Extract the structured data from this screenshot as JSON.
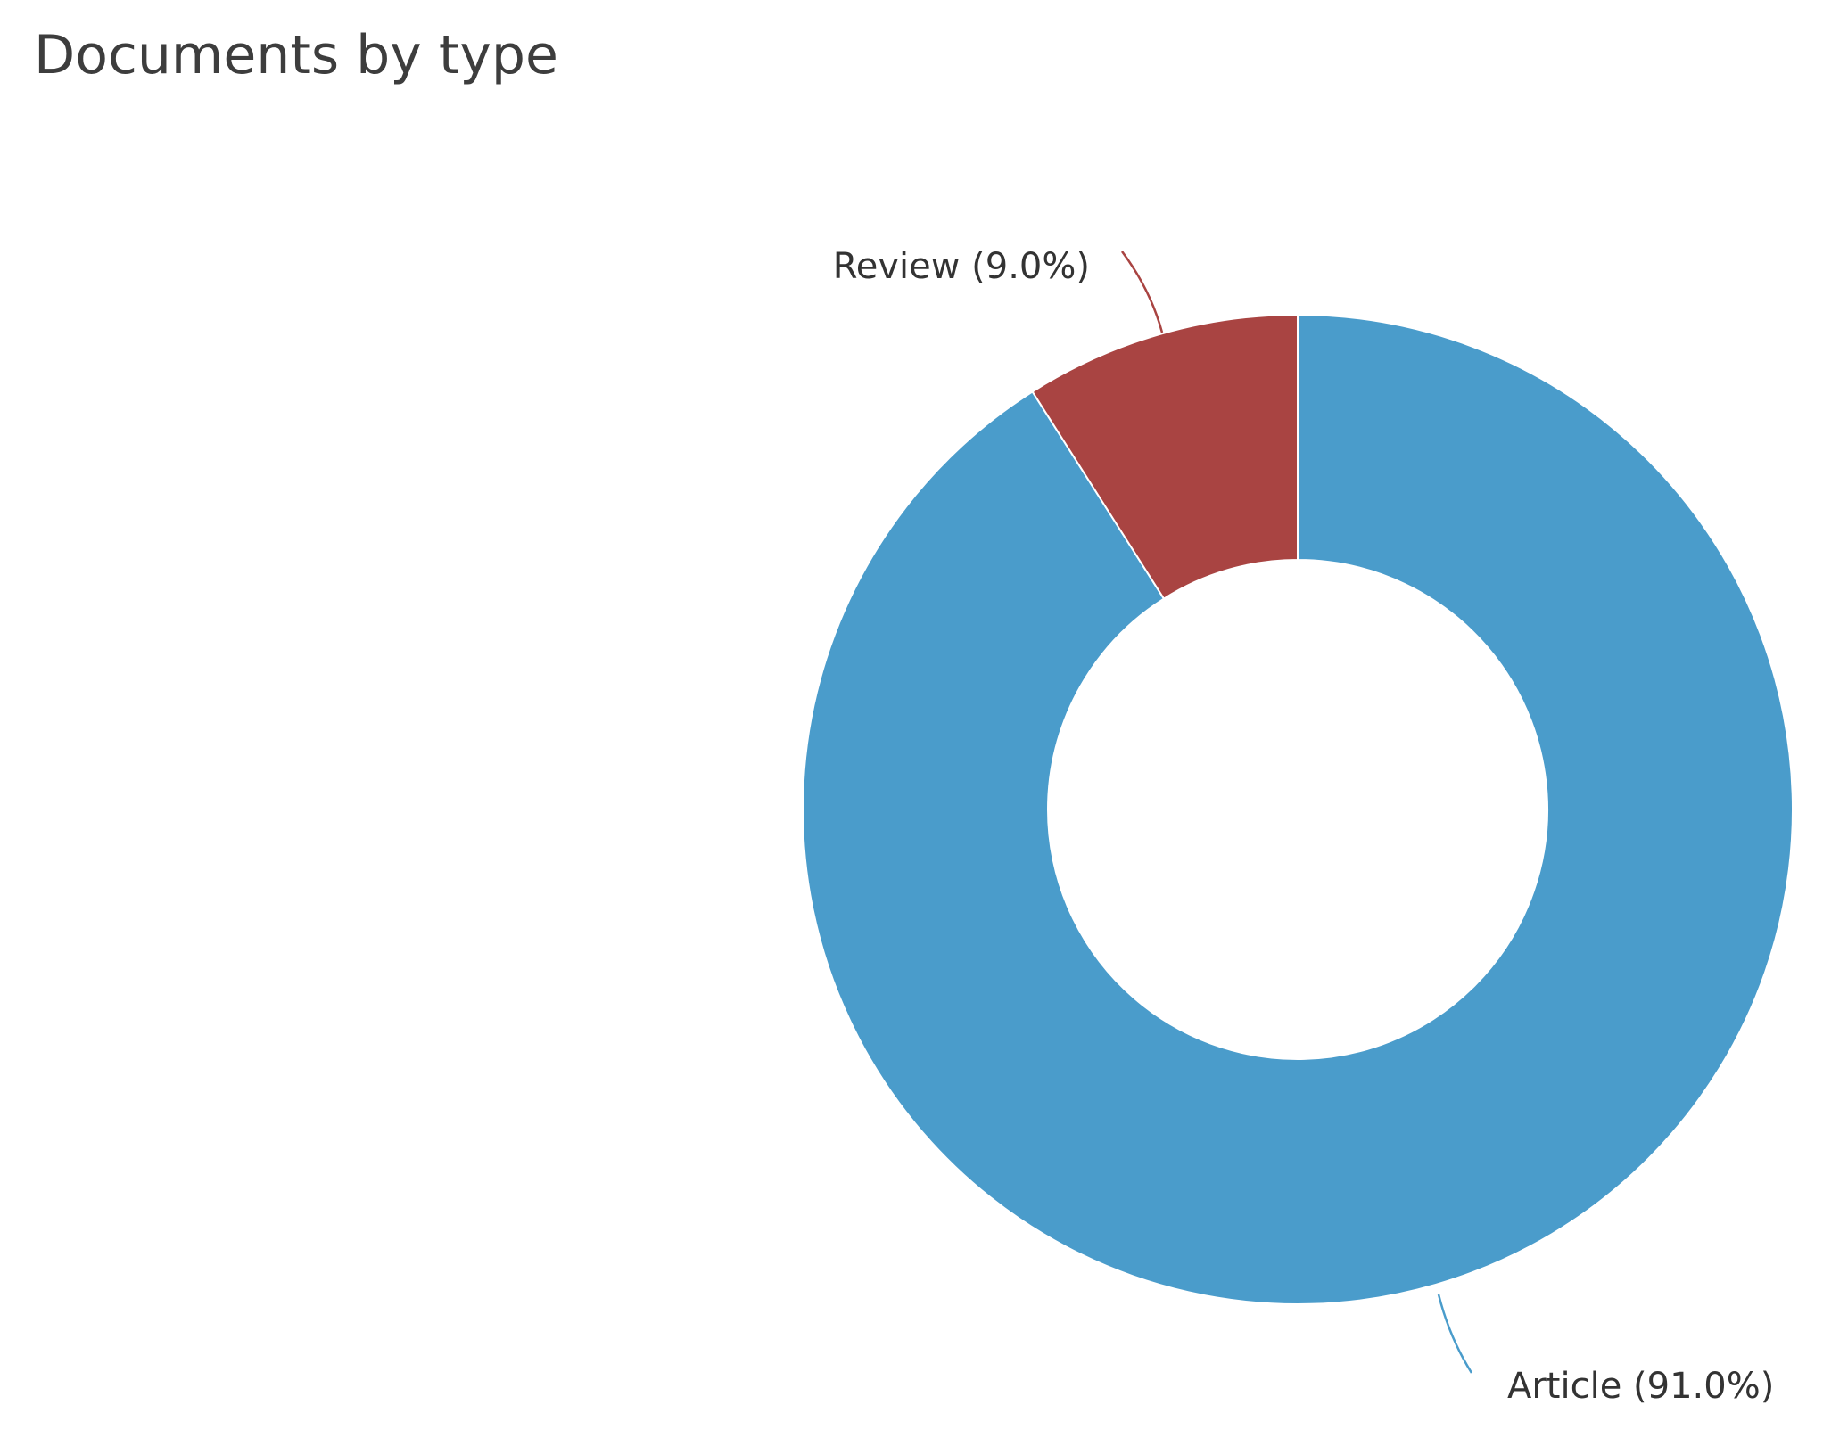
{
  "chart_data": {
    "type": "pie",
    "title": "Documents by type",
    "donut": true,
    "slices": [
      {
        "label": "Article (91.0%)",
        "category": "Article",
        "value": 91.0,
        "color": "#4a9ccb"
      },
      {
        "label": "Review (9.0%)",
        "category": "Review",
        "value": 9.0,
        "color": "#a94442"
      }
    ],
    "start_angle_deg": 0,
    "direction": "clockwise",
    "slice_border_color": "#ffffff"
  }
}
